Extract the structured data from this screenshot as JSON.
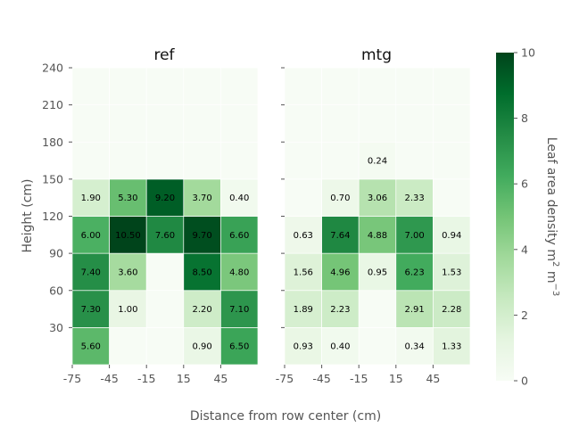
{
  "chart_data": {
    "type": "heatmap",
    "xlabel": "Distance from row center (cm)",
    "ylabel": "Height (cm)",
    "x_ticks": [
      "-75",
      "-45",
      "-15",
      "15",
      "45"
    ],
    "y_ticks": [
      "30",
      "60",
      "90",
      "120",
      "150",
      "180",
      "210",
      "240"
    ],
    "x_edges": [
      -75,
      -45,
      -15,
      15,
      45,
      75
    ],
    "y_edges": [
      0,
      30,
      60,
      90,
      120,
      150,
      180,
      210,
      240
    ],
    "colorbar": {
      "label": "Leaf area density m² m⁻³",
      "label_main": "Leaf area density m",
      "label_sup1": "2",
      "label_mid": " m",
      "label_sup2": "−3",
      "min": 0,
      "max": 10,
      "ticks": [
        "0",
        "2",
        "4",
        "6",
        "8",
        "10"
      ],
      "colormap": "Greens"
    },
    "panels": [
      {
        "title": "ref",
        "values": [
          [
            5.6,
            0.0,
            0.0,
            0.9,
            6.5
          ],
          [
            7.3,
            1.0,
            0.0,
            2.2,
            7.1
          ],
          [
            7.4,
            3.6,
            0.0,
            8.5,
            4.8
          ],
          [
            6.0,
            10.5,
            7.6,
            9.7,
            6.6
          ],
          [
            1.9,
            5.3,
            9.2,
            3.7,
            0.4
          ],
          [
            0,
            0,
            0,
            0,
            0
          ],
          [
            0,
            0,
            0,
            0,
            0
          ],
          [
            0,
            0,
            0,
            0,
            0
          ]
        ],
        "labels": [
          [
            "5.60",
            "",
            "",
            "0.90",
            "6.50"
          ],
          [
            "7.30",
            "1.00",
            "",
            "2.20",
            "7.10"
          ],
          [
            "7.40",
            "3.60",
            "",
            "8.50",
            "4.80"
          ],
          [
            "6.00",
            "10.50",
            "7.60",
            "9.70",
            "6.60"
          ],
          [
            "1.90",
            "5.30",
            "9.20",
            "3.70",
            "0.40"
          ],
          [
            "",
            "",
            "",
            "",
            ""
          ],
          [
            "",
            "",
            "",
            "",
            ""
          ],
          [
            "",
            "",
            "",
            "",
            ""
          ]
        ]
      },
      {
        "title": "mtg",
        "values": [
          [
            0.93,
            0.4,
            0.0,
            0.34,
            1.33
          ],
          [
            1.89,
            2.23,
            0.0,
            2.91,
            2.28
          ],
          [
            1.56,
            4.96,
            0.95,
            6.23,
            1.53
          ],
          [
            0.63,
            7.64,
            4.88,
            7.0,
            0.94
          ],
          [
            0.0,
            0.7,
            3.06,
            2.33,
            0.0
          ],
          [
            0,
            0,
            0.24,
            0,
            0
          ],
          [
            0,
            0,
            0,
            0,
            0
          ],
          [
            0,
            0,
            0,
            0,
            0
          ]
        ],
        "labels": [
          [
            "0.93",
            "0.40",
            "",
            "0.34",
            "1.33"
          ],
          [
            "1.89",
            "2.23",
            "",
            "2.91",
            "2.28"
          ],
          [
            "1.56",
            "4.96",
            "0.95",
            "6.23",
            "1.53"
          ],
          [
            "0.63",
            "7.64",
            "4.88",
            "7.00",
            "0.94"
          ],
          [
            "",
            "0.70",
            "3.06",
            "2.33",
            ""
          ],
          [
            "",
            "",
            "0.24",
            "",
            ""
          ],
          [
            "",
            "",
            "",
            "",
            ""
          ],
          [
            "",
            "",
            "",
            "",
            ""
          ]
        ]
      }
    ]
  }
}
